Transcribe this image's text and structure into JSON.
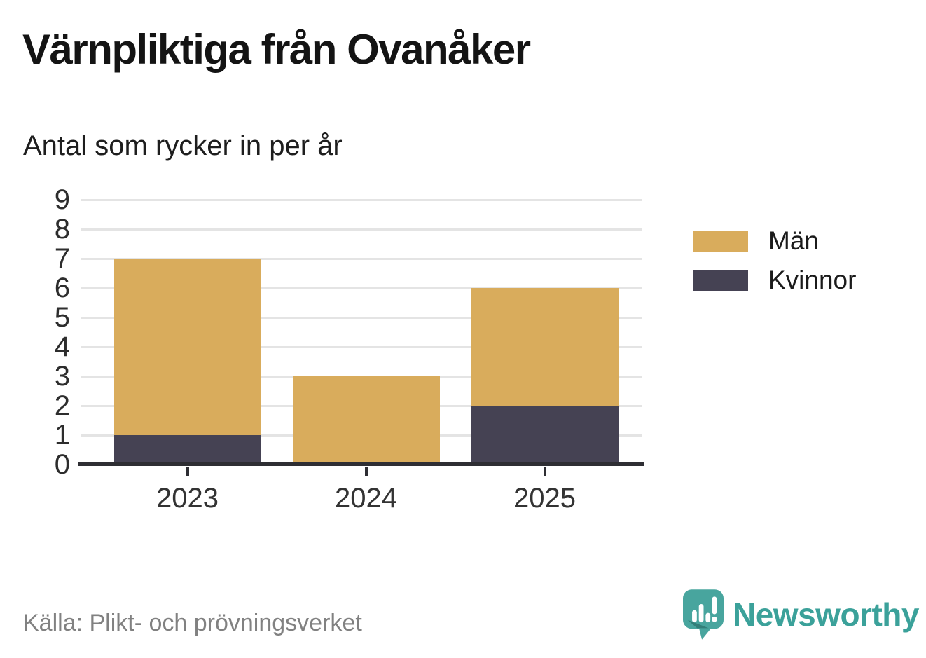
{
  "header": {
    "title": "Värnpliktiga från Ovanåker",
    "subtitle": "Antal som rycker in per år"
  },
  "chart_data": {
    "type": "bar",
    "stacked": true,
    "title": "Värnpliktiga från Ovanåker",
    "subtitle": "Antal som rycker in per år",
    "categories": [
      "2023",
      "2024",
      "2025"
    ],
    "series": [
      {
        "name": "Män",
        "color": "#d9ac5c",
        "values": [
          6,
          3,
          4
        ]
      },
      {
        "name": "Kvinnor",
        "color": "#454253",
        "values": [
          1,
          0,
          2
        ]
      }
    ],
    "stack_order_bottom_to_top": [
      "Kvinnor",
      "Män"
    ],
    "stacked_totals": [
      7,
      3,
      6
    ],
    "xlabel": "",
    "ylabel": "",
    "ylim": [
      0,
      9
    ],
    "ytick_step": 1,
    "grid": true,
    "legend_position": "right"
  },
  "footer": {
    "source": "Källa: Plikt- och prövningsverket",
    "brand": "Newsworthy"
  },
  "colors": {
    "men": "#d9ac5c",
    "women": "#454253",
    "axis_line": "#2e2e33",
    "gridline": "#e4e4e4",
    "brand_teal": "#3ba19a",
    "brand_bubble": "#48a59e",
    "source_text": "#818181"
  }
}
